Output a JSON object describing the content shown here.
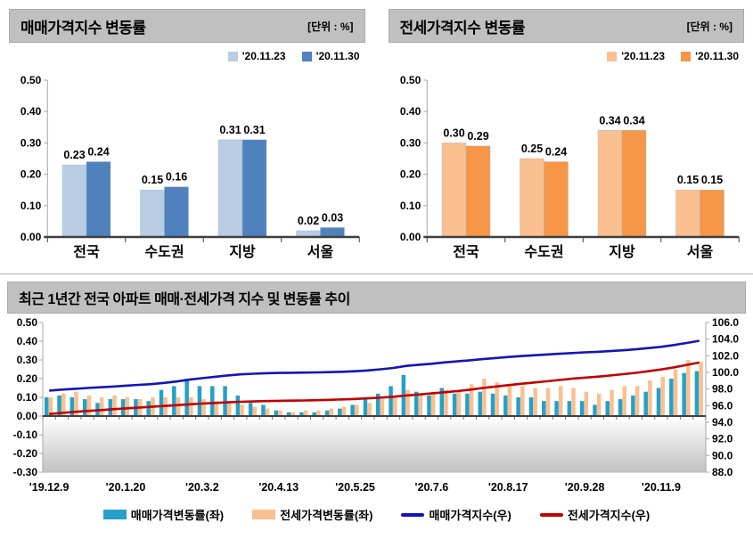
{
  "panel_sale": {
    "title": "매매가격지수 변동률",
    "unit": "[단위 : %]"
  },
  "panel_jeonse": {
    "title": "전세가격지수 변동률",
    "unit": "[단위 : %]"
  },
  "trend_panel": {
    "title": "최근 1년간 전국 아파트 매매·전세가격 지수 및 변동률 추이"
  },
  "colors": {
    "header_bg": "#c0c0c0",
    "sale_prev": "#b8cce4",
    "sale_curr": "#4f81bd",
    "jeonse_prev": "#fac090",
    "jeonse_curr": "#f79646",
    "trend_sale_bar": "#25a0c8",
    "trend_jeonse_bar": "#fac090",
    "trend_sale_line": "#1414b8",
    "trend_jeonse_line": "#c00000"
  },
  "chart_data": [
    {
      "id": "sale_change_bars",
      "type": "bar",
      "title": "매매가격지수 변동률",
      "unit": "[단위 : %]",
      "categories": [
        "전국",
        "수도권",
        "지방",
        "서울"
      ],
      "series": [
        {
          "name": "'20.11.23",
          "color": "#b8cce4",
          "values": [
            0.23,
            0.15,
            0.31,
            0.02
          ]
        },
        {
          "name": "'20.11.30",
          "color": "#4f81bd",
          "values": [
            0.24,
            0.16,
            0.31,
            0.03
          ]
        }
      ],
      "ylim": [
        0.0,
        0.5
      ],
      "ytick_step": 0.1,
      "grid": false,
      "legend_position": "top-right"
    },
    {
      "id": "jeonse_change_bars",
      "type": "bar",
      "title": "전세가격지수 변동률",
      "unit": "[단위 : %]",
      "categories": [
        "전국",
        "수도권",
        "지방",
        "서울"
      ],
      "series": [
        {
          "name": "'20.11.23",
          "color": "#fac090",
          "values": [
            0.3,
            0.25,
            0.34,
            0.15
          ]
        },
        {
          "name": "'20.11.30",
          "color": "#f79646",
          "values": [
            0.29,
            0.24,
            0.34,
            0.15
          ]
        }
      ],
      "ylim": [
        0.0,
        0.5
      ],
      "ytick_step": 0.1,
      "grid": false,
      "legend_position": "top-right"
    },
    {
      "id": "trend_dual_axis",
      "type": "bar+line",
      "title": "최근 1년간 전국 아파트 매매·전세가격 지수 및 변동률 추이",
      "n_points": 52,
      "x_tick_labels": [
        "'19.12.9",
        "'20.1.20",
        "'20.3.2",
        "'20.4.13",
        "'20.5.25",
        "'20.7.6",
        "'20.8.17",
        "'20.9.28",
        "'20.11.9"
      ],
      "x_tick_every": 6,
      "left_axis": {
        "min": -0.3,
        "max": 0.5,
        "tick_step": 0.1
      },
      "right_axis": {
        "min": 88.0,
        "max": 106.0,
        "tick_step": 2.0
      },
      "bar_series": [
        {
          "name": "매매가격변동률(좌)",
          "axis": "left",
          "color": "#25a0c8",
          "values": [
            0.1,
            0.11,
            0.1,
            0.09,
            0.07,
            0.09,
            0.09,
            0.09,
            0.08,
            0.14,
            0.16,
            0.2,
            0.16,
            0.16,
            0.16,
            0.11,
            0.07,
            0.06,
            0.03,
            0.02,
            0.02,
            0.02,
            0.03,
            0.04,
            0.06,
            0.09,
            0.12,
            0.16,
            0.22,
            0.13,
            0.11,
            0.15,
            0.12,
            0.12,
            0.13,
            0.12,
            0.11,
            0.1,
            0.1,
            0.08,
            0.08,
            0.08,
            0.08,
            0.06,
            0.08,
            0.09,
            0.11,
            0.13,
            0.15,
            0.2,
            0.23,
            0.24
          ]
        },
        {
          "name": "전세가격변동률(좌)",
          "axis": "left",
          "color": "#fac090",
          "values": [
            0.1,
            0.12,
            0.13,
            0.11,
            0.1,
            0.11,
            0.1,
            0.09,
            0.1,
            0.1,
            0.1,
            0.1,
            0.09,
            0.08,
            0.07,
            0.06,
            0.05,
            0.04,
            0.03,
            0.02,
            0.03,
            0.03,
            0.04,
            0.05,
            0.06,
            0.07,
            0.09,
            0.11,
            0.14,
            0.12,
            0.13,
            0.14,
            0.14,
            0.17,
            0.2,
            0.18,
            0.17,
            0.16,
            0.15,
            0.15,
            0.16,
            0.15,
            0.13,
            0.12,
            0.14,
            0.16,
            0.16,
            0.19,
            0.21,
            0.25,
            0.3,
            0.29
          ]
        }
      ],
      "line_series": [
        {
          "name": "매매가격지수(우)",
          "axis": "right",
          "color": "#1414b8",
          "values": [
            97.81,
            97.93,
            98.03,
            98.13,
            98.21,
            98.3,
            98.4,
            98.5,
            98.59,
            98.74,
            98.91,
            99.13,
            99.3,
            99.47,
            99.64,
            99.76,
            99.84,
            99.9,
            99.94,
            99.96,
            99.98,
            100.0,
            100.03,
            100.08,
            100.14,
            100.24,
            100.37,
            100.54,
            100.78,
            100.92,
            101.04,
            101.2,
            101.33,
            101.46,
            101.6,
            101.73,
            101.85,
            101.96,
            102.06,
            102.15,
            102.24,
            102.32,
            102.41,
            102.47,
            102.56,
            102.66,
            102.78,
            102.92,
            103.08,
            103.29,
            103.54,
            103.8
          ]
        },
        {
          "name": "전세가격지수(우)",
          "axis": "right",
          "color": "#c00000",
          "values": [
            95.0,
            95.12,
            95.25,
            95.36,
            95.46,
            95.57,
            95.67,
            95.76,
            95.86,
            95.96,
            96.06,
            96.16,
            96.25,
            96.33,
            96.4,
            96.46,
            96.51,
            96.55,
            96.58,
            96.6,
            96.63,
            96.66,
            96.7,
            96.75,
            96.81,
            96.88,
            96.97,
            97.08,
            97.22,
            97.34,
            97.47,
            97.61,
            97.75,
            97.92,
            98.12,
            98.3,
            98.47,
            98.63,
            98.78,
            98.93,
            99.09,
            99.24,
            99.37,
            99.49,
            99.63,
            99.79,
            99.95,
            100.14,
            100.35,
            100.6,
            100.9,
            101.19
          ]
        }
      ]
    }
  ]
}
